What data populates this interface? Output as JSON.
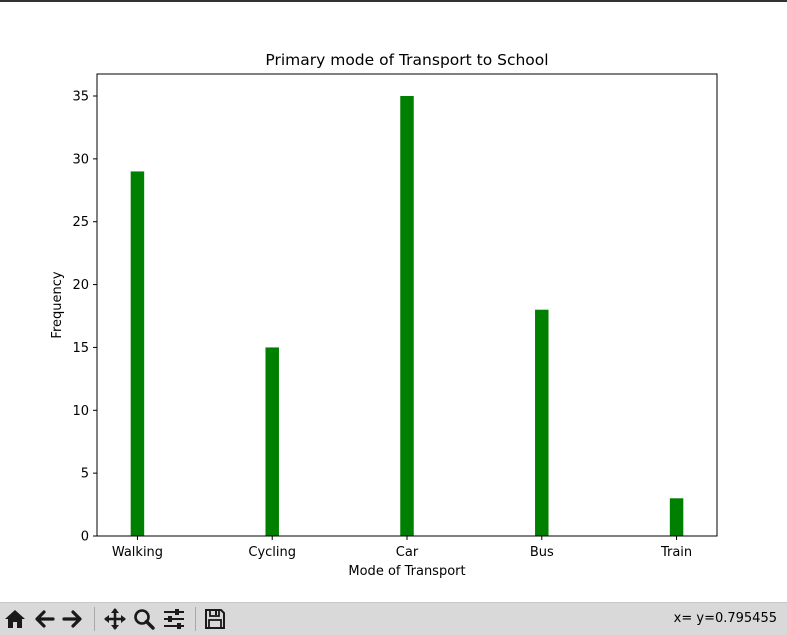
{
  "chart_data": {
    "type": "bar",
    "title": "Primary mode of Transport to School",
    "xlabel": "Mode of Transport",
    "ylabel": "Frequency",
    "categories": [
      "Walking",
      "Cycling",
      "Car",
      "Bus",
      "Train"
    ],
    "values": [
      29,
      15,
      35,
      18,
      3
    ],
    "ylim": [
      0,
      36.75
    ],
    "yticks": [
      0,
      5,
      10,
      15,
      20,
      25,
      30,
      35
    ],
    "bar_color": "#008000",
    "grid": false,
    "legend": "none"
  },
  "toolbar": {
    "buttons": [
      "home-icon",
      "back-arrow-icon",
      "forward-arrow-icon",
      "pan-icon",
      "zoom-icon",
      "configure-subplots-icon",
      "save-icon"
    ],
    "coordinates": "x= y=0.795455"
  }
}
